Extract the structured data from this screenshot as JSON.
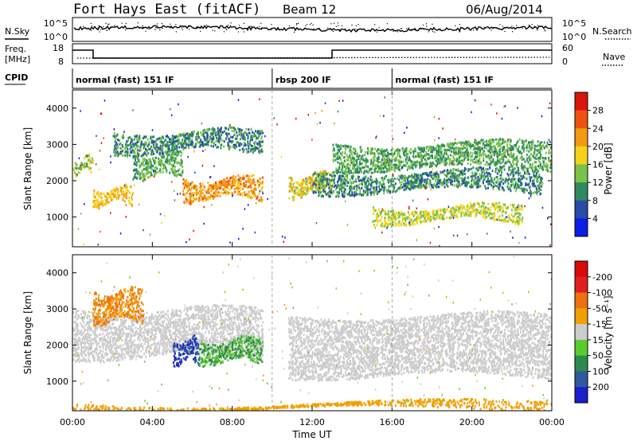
{
  "header": {
    "radar": "Fort Hays East (fitACF)",
    "beam": "Beam 12",
    "date": "06/Aug/2014"
  },
  "status_panels": {
    "nsky_label": "N.Sky",
    "nsearch_label": "N.Search",
    "freq_label_1": "Freq.",
    "freq_label_2": "[MHz]",
    "nave_label": "Nave",
    "cpid_label": "CPID",
    "noise_left_ticks": [
      "10^5",
      "10^0"
    ],
    "noise_right_ticks": [
      "10^5",
      "10^0"
    ],
    "freq_left_ticks": [
      "18",
      "8"
    ],
    "freq_right_ticks": [
      "60",
      "0"
    ],
    "cpid_segments": [
      {
        "label": "normal (fast) 151 IF",
        "start_hour": 0,
        "end_hour": 10
      },
      {
        "label": "rbsp 200 IF",
        "start_hour": 10,
        "end_hour": 16
      },
      {
        "label": "normal (fast) 151 IF",
        "start_hour": 16,
        "end_hour": 24
      }
    ]
  },
  "chart_data": [
    {
      "type": "heatmap",
      "title": "Power",
      "ylabel": "Slant Range [km]",
      "colorbar_label": "Power [dB]",
      "ylim": [
        180,
        4500
      ],
      "yticks": [
        1000,
        2000,
        3000,
        4000
      ],
      "colorbar_ticks": [
        "4",
        "8",
        "12",
        "16",
        "20",
        "24",
        "28"
      ],
      "colors": [
        "#0a1ee6",
        "#2a4aa8",
        "#2e8a5e",
        "#7cc24a",
        "#f5d21a",
        "#f29a10",
        "#ee5210",
        "#d9140a"
      ],
      "features": [
        {
          "start_hour": 0.0,
          "end_hour": 1.0,
          "range_km": [
            2200,
            2700
          ],
          "power_db": 14
        },
        {
          "start_hour": 1.0,
          "end_hour": 3.0,
          "range_km": [
            1300,
            1900
          ],
          "power_db": 20
        },
        {
          "start_hour": 3.0,
          "end_hour": 5.5,
          "range_km": [
            2000,
            2900
          ],
          "power_db": 12
        },
        {
          "start_hour": 5.5,
          "end_hour": 9.5,
          "range_km": [
            1400,
            2200
          ],
          "power_db": 22
        },
        {
          "start_hour": 2.0,
          "end_hour": 9.5,
          "range_km": [
            2700,
            3500
          ],
          "power_db": 10
        },
        {
          "start_hour": 10.8,
          "end_hour": 13.0,
          "range_km": [
            1500,
            2300
          ],
          "power_db": 18
        },
        {
          "start_hour": 13.0,
          "end_hour": 24.0,
          "range_km": [
            2200,
            3200
          ],
          "power_db": 12
        },
        {
          "start_hour": 15.0,
          "end_hour": 22.5,
          "range_km": [
            800,
            1400
          ],
          "power_db": 16
        },
        {
          "start_hour": 12.0,
          "end_hour": 23.5,
          "range_km": [
            1600,
            2400
          ],
          "power_db": 10
        }
      ]
    },
    {
      "type": "heatmap",
      "title": "Velocity",
      "ylabel": "Slant Range [km]",
      "xlabel": "Time UT",
      "colorbar_label": "Velocity [m s⁻¹]",
      "ylim": [
        180,
        4500
      ],
      "yticks": [
        1000,
        2000,
        3000,
        4000
      ],
      "xticks": [
        "00:00",
        "04:00",
        "08:00",
        "12:00",
        "16:00",
        "20:00",
        "00:00"
      ],
      "colorbar_ticks": [
        "200",
        "100",
        "50",
        "15",
        "-15",
        "-50",
        "-100",
        "-200"
      ],
      "colors": [
        "#1a1ecc",
        "#2e5aa0",
        "#2e8a4a",
        "#58cc2e",
        "#cccccc",
        "#f0a000",
        "#f07010",
        "#e02020",
        "#d90a0a"
      ],
      "features": [
        {
          "start_hour": 0.0,
          "end_hour": 9.5,
          "range_km": [
            1400,
            3300
          ],
          "velocity_ms": 0
        },
        {
          "start_hour": 1.0,
          "end_hour": 3.5,
          "range_km": [
            2500,
            3700
          ],
          "velocity_ms": -50
        },
        {
          "start_hour": 5.0,
          "end_hour": 6.3,
          "range_km": [
            1400,
            2300
          ],
          "velocity_ms": 200
        },
        {
          "start_hour": 6.3,
          "end_hour": 9.5,
          "range_km": [
            1400,
            2300
          ],
          "velocity_ms": 50
        },
        {
          "start_hour": 10.8,
          "end_hour": 24.0,
          "range_km": [
            800,
            3200
          ],
          "velocity_ms": 0
        },
        {
          "start_hour": 0.0,
          "end_hour": 24.0,
          "range_km": [
            180,
            450
          ],
          "velocity_ms": -30
        }
      ]
    }
  ]
}
